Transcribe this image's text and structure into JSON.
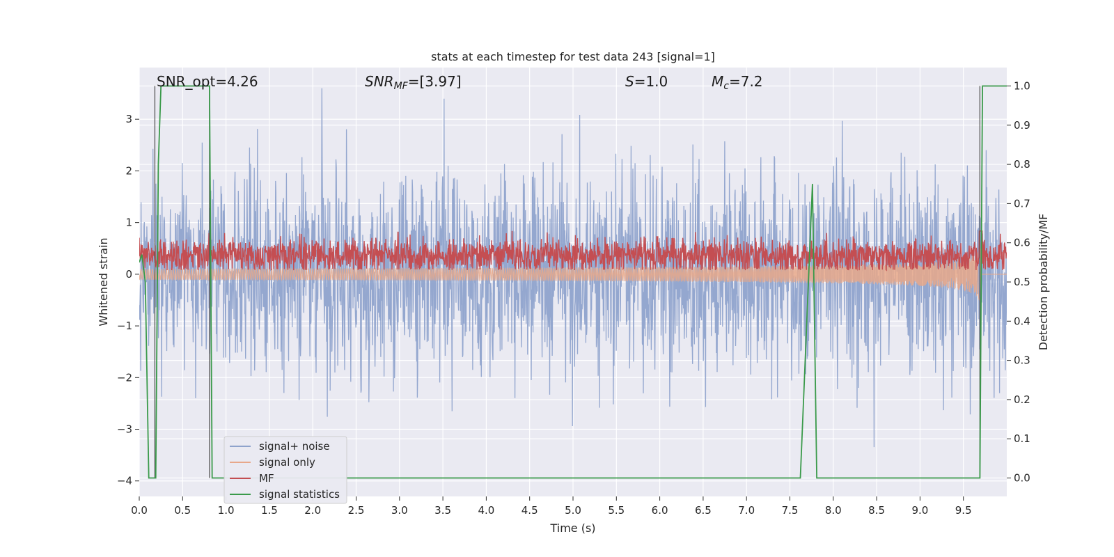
{
  "chart_data": {
    "type": "line",
    "title": "stats at each timestep for test data 243 [signal=1]",
    "xlabel": "Time (s)",
    "ylabel": "Whitened strain",
    "y2label": "Detection probability/MF",
    "xlim": [
      0.0,
      10.0
    ],
    "ylim": [
      -4.3,
      4.0
    ],
    "y2lim": [
      -0.047,
      1.047
    ],
    "x_ticks": [
      "0.0",
      "0.5",
      "1.0",
      "1.5",
      "2.0",
      "2.5",
      "3.0",
      "3.5",
      "4.0",
      "4.5",
      "5.0",
      "5.5",
      "6.0",
      "6.5",
      "7.0",
      "7.5",
      "8.0",
      "8.5",
      "9.0",
      "9.5"
    ],
    "y_ticks": [
      "3",
      "2",
      "1",
      "0",
      "−1",
      "−2",
      "−3",
      "−4"
    ],
    "y2_ticks": [
      "1.0",
      "0.9",
      "0.8",
      "0.7",
      "0.6",
      "0.5",
      "0.4",
      "0.3",
      "0.2",
      "0.1",
      "0.0"
    ],
    "grid": true,
    "legend_position": "lower-left",
    "annotations": {
      "snr_opt": "SNR_opt=4.26",
      "snr_mf_sym": "SNR",
      "snr_mf_sub": "MF",
      "snr_mf_val": "=[3.97]",
      "s_sym": "S",
      "s_val": "=1.0",
      "mc_sym": "M",
      "mc_sub": "c",
      "mc_val": "=7.2"
    },
    "series": [
      {
        "name": "signal+ noise",
        "color": "#8fa3cc",
        "kind": "noise",
        "amplitude_range": [
          -3.5,
          3.6
        ]
      },
      {
        "name": "signal only",
        "color": "#e8a88a",
        "kind": "chirp",
        "peak_time": 9.7,
        "min_value": -0.55
      },
      {
        "name": "MF",
        "color": "#c44e52",
        "kind": "mf",
        "y2_range": [
          0.53,
          0.63
        ]
      },
      {
        "name": "signal statistics",
        "color": "#3a9a4a",
        "x": [
          0.0,
          0.03,
          0.07,
          0.11,
          0.15,
          0.19,
          0.22,
          0.25,
          0.81,
          0.84,
          0.87,
          7.62,
          7.76,
          7.81,
          9.69,
          9.72,
          9.76,
          10.0
        ],
        "y": [
          0.55,
          0.57,
          0.5,
          0.0,
          0.0,
          0.0,
          0.8,
          1.0,
          1.0,
          0.0,
          0.0,
          0.0,
          0.75,
          0.0,
          0.0,
          1.0,
          1.0,
          1.0
        ]
      }
    ],
    "vertical_markers": [
      0.18,
      0.81,
      9.69
    ]
  }
}
